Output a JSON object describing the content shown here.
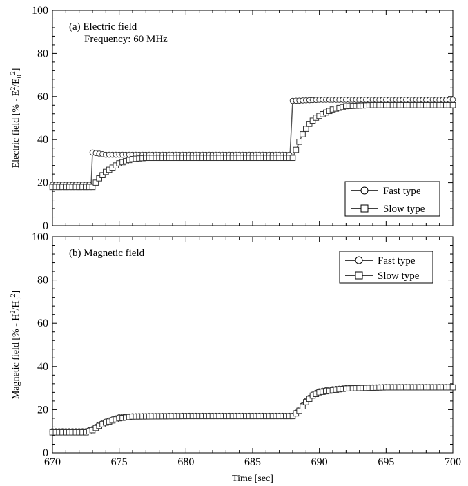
{
  "chart_data": [
    {
      "type": "line",
      "panel_label": "(a) Electric field",
      "annotation": "Frequency: 60 MHz",
      "ylabel": {
        "prefix": "Electric field [% - E",
        "sup1": "2",
        "mid": "/E",
        "sub": "0",
        "sup2": "2",
        "suffix": "]"
      },
      "xlim": [
        670,
        700
      ],
      "ylim": [
        0,
        100
      ],
      "yticks": [
        0,
        20,
        40,
        60,
        80,
        100
      ],
      "xticks": [
        670,
        675,
        680,
        685,
        690,
        695,
        700
      ],
      "show_x_tick_labels": false,
      "legend_position": "lower-right",
      "series": [
        {
          "name": "Fast type",
          "marker": "circle",
          "x": [
            670,
            672.9,
            673.0,
            674,
            675,
            678,
            682,
            685,
            687.8,
            688.0,
            690,
            695,
            700
          ],
          "y": [
            19,
            19,
            34,
            33,
            33,
            33,
            33,
            33,
            33,
            58,
            58.5,
            58.5,
            58.5
          ]
        },
        {
          "name": "Slow type",
          "marker": "square",
          "x": [
            670,
            673,
            673.5,
            674,
            674.5,
            675,
            675.5,
            676,
            677,
            680,
            685,
            688,
            688.3,
            688.7,
            689.2,
            689.7,
            690.3,
            691,
            692,
            694,
            700
          ],
          "y": [
            18,
            18,
            22,
            25,
            27,
            29,
            30,
            31,
            31.5,
            31.5,
            31.5,
            31.5,
            36,
            42,
            47,
            50,
            52,
            54,
            55.5,
            56,
            56
          ]
        }
      ]
    },
    {
      "type": "line",
      "panel_label": "(b) Magnetic field",
      "ylabel": {
        "prefix": "Magnetic field [% - H",
        "sup1": "2",
        "mid": "/H",
        "sub": "0",
        "sup2": "2",
        "suffix": "]"
      },
      "xlabel": "Time [sec]",
      "xlim": [
        670,
        700
      ],
      "ylim": [
        0,
        100
      ],
      "yticks": [
        0,
        20,
        40,
        60,
        80,
        100
      ],
      "xticks": [
        670,
        675,
        680,
        685,
        690,
        695,
        700
      ],
      "show_x_tick_labels": true,
      "legend_position": "upper-right",
      "series": [
        {
          "name": "Fast type",
          "marker": "circle",
          "x": [
            670,
            672.5,
            673,
            673.5,
            674,
            674.5,
            675,
            676,
            680,
            685,
            688,
            688.5,
            689,
            689.5,
            690,
            691,
            692,
            695,
            700
          ],
          "y": [
            10,
            10,
            11,
            13,
            14.5,
            15.5,
            16.5,
            17,
            17.2,
            17.2,
            17.2,
            20,
            24,
            27,
            28.5,
            29.5,
            30,
            30.5,
            30.5
          ]
        },
        {
          "name": "Slow type",
          "marker": "square",
          "x": [
            670,
            672.5,
            673,
            673.5,
            674,
            674.5,
            675,
            676,
            680,
            685,
            688,
            688.5,
            689,
            689.5,
            690,
            691,
            692,
            695,
            700
          ],
          "y": [
            9.5,
            9.5,
            10.5,
            12.5,
            14,
            15,
            16,
            16.8,
            17,
            17,
            17,
            19.5,
            23.5,
            26.5,
            28,
            29,
            29.8,
            30.3,
            30.3
          ]
        }
      ]
    }
  ]
}
